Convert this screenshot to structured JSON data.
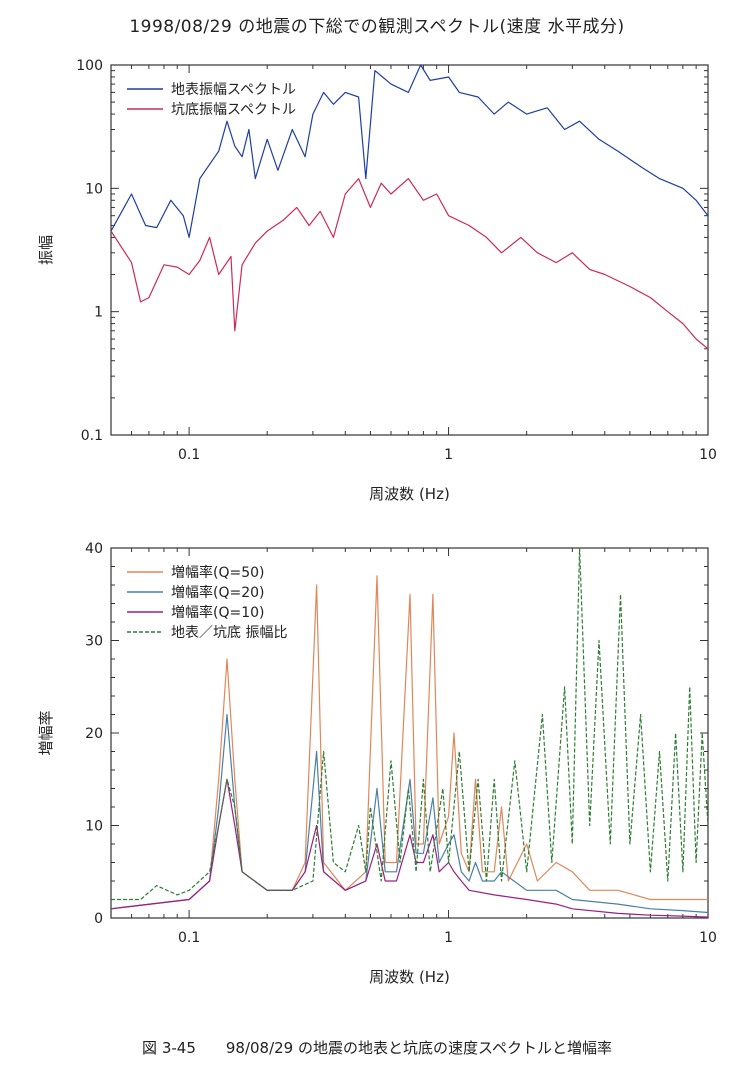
{
  "title": "1998/08/29 の地震の下総での観測スペクトル(速度 水平成分)",
  "caption": "図 3-45　　98/08/29 の地震の地表と坑底の速度スペクトルと増幅率",
  "chart_data": [
    {
      "type": "line",
      "xscale": "log",
      "yscale": "log",
      "xlim": [
        0.05,
        10
      ],
      "ylim": [
        0.1,
        100
      ],
      "xlabel": "周波数 (Hz)",
      "ylabel": "振幅",
      "xticks": [
        "0.1",
        "1",
        "10"
      ],
      "yticks": [
        "0.1",
        "1",
        "10",
        "100"
      ],
      "legend": "top-left",
      "series": [
        {
          "name": "地表振幅スペクトル",
          "color": "#1f3f9f",
          "points": [
            [
              0.05,
              4.5
            ],
            [
              0.06,
              9
            ],
            [
              0.068,
              5
            ],
            [
              0.075,
              4.8
            ],
            [
              0.085,
              8
            ],
            [
              0.095,
              6
            ],
            [
              0.1,
              4
            ],
            [
              0.11,
              12
            ],
            [
              0.13,
              20
            ],
            [
              0.14,
              35
            ],
            [
              0.15,
              22
            ],
            [
              0.16,
              18
            ],
            [
              0.17,
              30
            ],
            [
              0.18,
              12
            ],
            [
              0.2,
              25
            ],
            [
              0.22,
              14
            ],
            [
              0.25,
              30
            ],
            [
              0.28,
              18
            ],
            [
              0.3,
              40
            ],
            [
              0.33,
              60
            ],
            [
              0.36,
              48
            ],
            [
              0.4,
              60
            ],
            [
              0.45,
              55
            ],
            [
              0.48,
              12
            ],
            [
              0.52,
              90
            ],
            [
              0.6,
              70
            ],
            [
              0.7,
              60
            ],
            [
              0.78,
              100
            ],
            [
              0.85,
              75
            ],
            [
              1.0,
              80
            ],
            [
              1.1,
              60
            ],
            [
              1.3,
              55
            ],
            [
              1.5,
              40
            ],
            [
              1.7,
              50
            ],
            [
              2.0,
              40
            ],
            [
              2.4,
              45
            ],
            [
              2.8,
              30
            ],
            [
              3.2,
              35
            ],
            [
              3.8,
              25
            ],
            [
              4.5,
              20
            ],
            [
              5.5,
              15
            ],
            [
              6.5,
              12
            ],
            [
              8,
              10
            ],
            [
              9,
              8
            ],
            [
              10,
              6
            ]
          ]
        },
        {
          "name": "坑底振幅スペクトル",
          "color": "#cc2a55",
          "points": [
            [
              0.05,
              4.5
            ],
            [
              0.06,
              2.5
            ],
            [
              0.065,
              1.2
            ],
            [
              0.07,
              1.3
            ],
            [
              0.08,
              2.4
            ],
            [
              0.09,
              2.3
            ],
            [
              0.1,
              2
            ],
            [
              0.11,
              2.6
            ],
            [
              0.12,
              4
            ],
            [
              0.13,
              2
            ],
            [
              0.145,
              2.8
            ],
            [
              0.15,
              0.7
            ],
            [
              0.16,
              2.4
            ],
            [
              0.18,
              3.6
            ],
            [
              0.2,
              4.5
            ],
            [
              0.23,
              5.5
            ],
            [
              0.26,
              7
            ],
            [
              0.29,
              5
            ],
            [
              0.32,
              6.5
            ],
            [
              0.36,
              4
            ],
            [
              0.4,
              9
            ],
            [
              0.45,
              12
            ],
            [
              0.5,
              7
            ],
            [
              0.55,
              11
            ],
            [
              0.6,
              9
            ],
            [
              0.7,
              12
            ],
            [
              0.8,
              8
            ],
            [
              0.9,
              9
            ],
            [
              1.0,
              6
            ],
            [
              1.2,
              5
            ],
            [
              1.4,
              4
            ],
            [
              1.6,
              3
            ],
            [
              1.9,
              4
            ],
            [
              2.2,
              3
            ],
            [
              2.6,
              2.5
            ],
            [
              3,
              3
            ],
            [
              3.5,
              2.2
            ],
            [
              4,
              2
            ],
            [
              5,
              1.6
            ],
            [
              6,
              1.3
            ],
            [
              7,
              1
            ],
            [
              8,
              0.8
            ],
            [
              9,
              0.6
            ],
            [
              10,
              0.5
            ]
          ]
        }
      ]
    },
    {
      "type": "line",
      "xscale": "log",
      "yscale": "linear",
      "xlim": [
        0.05,
        10
      ],
      "ylim": [
        0,
        40
      ],
      "xlabel": "周波数 (Hz)",
      "ylabel": "増幅率",
      "xticks": [
        "0.1",
        "1",
        "10"
      ],
      "yticks": [
        "0",
        "10",
        "20",
        "30",
        "40"
      ],
      "legend": "top-left",
      "series": [
        {
          "name": "増幅率(Q=50)",
          "color": "#e0875a",
          "points": [
            [
              0.05,
              1
            ],
            [
              0.1,
              2
            ],
            [
              0.12,
              4
            ],
            [
              0.13,
              15
            ],
            [
              0.14,
              28
            ],
            [
              0.15,
              15
            ],
            [
              0.16,
              5
            ],
            [
              0.2,
              3
            ],
            [
              0.25,
              3
            ],
            [
              0.28,
              6
            ],
            [
              0.31,
              36
            ],
            [
              0.33,
              6
            ],
            [
              0.4,
              3
            ],
            [
              0.48,
              5
            ],
            [
              0.53,
              37
            ],
            [
              0.57,
              6
            ],
            [
              0.63,
              6
            ],
            [
              0.71,
              35
            ],
            [
              0.75,
              8
            ],
            [
              0.8,
              8
            ],
            [
              0.87,
              35
            ],
            [
              0.92,
              8
            ],
            [
              1.0,
              11
            ],
            [
              1.05,
              20
            ],
            [
              1.12,
              7
            ],
            [
              1.2,
              5
            ],
            [
              1.27,
              15
            ],
            [
              1.35,
              5
            ],
            [
              1.5,
              5
            ],
            [
              1.6,
              12
            ],
            [
              1.7,
              4
            ],
            [
              2.0,
              8
            ],
            [
              2.2,
              4
            ],
            [
              2.6,
              6
            ],
            [
              3.0,
              5
            ],
            [
              3.5,
              3
            ],
            [
              4.5,
              3
            ],
            [
              6,
              2
            ],
            [
              8,
              2
            ],
            [
              10,
              2
            ]
          ]
        },
        {
          "name": "増幅率(Q=20)",
          "color": "#4a7fa6",
          "points": [
            [
              0.05,
              1
            ],
            [
              0.1,
              2
            ],
            [
              0.12,
              4
            ],
            [
              0.13,
              12
            ],
            [
              0.14,
              22
            ],
            [
              0.15,
              12
            ],
            [
              0.16,
              5
            ],
            [
              0.2,
              3
            ],
            [
              0.25,
              3
            ],
            [
              0.28,
              5
            ],
            [
              0.31,
              18
            ],
            [
              0.33,
              5
            ],
            [
              0.4,
              3
            ],
            [
              0.48,
              4
            ],
            [
              0.53,
              14
            ],
            [
              0.57,
              5
            ],
            [
              0.63,
              5
            ],
            [
              0.71,
              15
            ],
            [
              0.75,
              7
            ],
            [
              0.8,
              7
            ],
            [
              0.87,
              13
            ],
            [
              0.92,
              6
            ],
            [
              1.0,
              8
            ],
            [
              1.05,
              9
            ],
            [
              1.12,
              5
            ],
            [
              1.2,
              4
            ],
            [
              1.27,
              6
            ],
            [
              1.35,
              4
            ],
            [
              1.5,
              4
            ],
            [
              1.6,
              5
            ],
            [
              2.0,
              3
            ],
            [
              2.6,
              3
            ],
            [
              3.0,
              2
            ],
            [
              4.5,
              1.5
            ],
            [
              6,
              1
            ],
            [
              8,
              0.8
            ],
            [
              10,
              0.6
            ]
          ]
        },
        {
          "name": "増幅率(Q=10)",
          "color": "#9b1f82",
          "points": [
            [
              0.05,
              1
            ],
            [
              0.1,
              2
            ],
            [
              0.12,
              4
            ],
            [
              0.13,
              10
            ],
            [
              0.14,
              15
            ],
            [
              0.15,
              10
            ],
            [
              0.16,
              5
            ],
            [
              0.2,
              3
            ],
            [
              0.25,
              3
            ],
            [
              0.28,
              5
            ],
            [
              0.31,
              10
            ],
            [
              0.33,
              5
            ],
            [
              0.4,
              3
            ],
            [
              0.48,
              4
            ],
            [
              0.53,
              8
            ],
            [
              0.57,
              4
            ],
            [
              0.63,
              4
            ],
            [
              0.71,
              9
            ],
            [
              0.75,
              6
            ],
            [
              0.8,
              6
            ],
            [
              0.87,
              9
            ],
            [
              0.92,
              5
            ],
            [
              1.0,
              6
            ],
            [
              1.05,
              5
            ],
            [
              1.12,
              4
            ],
            [
              1.2,
              3
            ],
            [
              1.5,
              2.5
            ],
            [
              2.0,
              2
            ],
            [
              2.6,
              1.5
            ],
            [
              3.0,
              1
            ],
            [
              4.5,
              0.5
            ],
            [
              6,
              0.3
            ],
            [
              8,
              0.2
            ],
            [
              10,
              0.1
            ]
          ]
        },
        {
          "name": "地表／坑底 振幅比",
          "color": "#2e7d32",
          "dashed": true,
          "points": [
            [
              0.05,
              2
            ],
            [
              0.065,
              2
            ],
            [
              0.075,
              3.5
            ],
            [
              0.09,
              2.5
            ],
            [
              0.1,
              3
            ],
            [
              0.12,
              5
            ],
            [
              0.13,
              10
            ],
            [
              0.14,
              15
            ],
            [
              0.15,
              12
            ],
            [
              0.16,
              5
            ],
            [
              0.2,
              3
            ],
            [
              0.25,
              3
            ],
            [
              0.3,
              4
            ],
            [
              0.33,
              18
            ],
            [
              0.36,
              6
            ],
            [
              0.4,
              5
            ],
            [
              0.45,
              10
            ],
            [
              0.48,
              5
            ],
            [
              0.5,
              12
            ],
            [
              0.55,
              4
            ],
            [
              0.6,
              17
            ],
            [
              0.65,
              6
            ],
            [
              0.7,
              14
            ],
            [
              0.75,
              5
            ],
            [
              0.8,
              15
            ],
            [
              0.85,
              5
            ],
            [
              0.95,
              14
            ],
            [
              1.0,
              6
            ],
            [
              1.1,
              18
            ],
            [
              1.2,
              5
            ],
            [
              1.3,
              15
            ],
            [
              1.4,
              4
            ],
            [
              1.5,
              15
            ],
            [
              1.6,
              4
            ],
            [
              1.8,
              17
            ],
            [
              2.0,
              5
            ],
            [
              2.3,
              22
            ],
            [
              2.5,
              6
            ],
            [
              2.8,
              25
            ],
            [
              3.0,
              8
            ],
            [
              3.2,
              40
            ],
            [
              3.5,
              10
            ],
            [
              3.8,
              30
            ],
            [
              4.2,
              8
            ],
            [
              4.6,
              35
            ],
            [
              5,
              8
            ],
            [
              5.5,
              22
            ],
            [
              6,
              5
            ],
            [
              6.5,
              18
            ],
            [
              7,
              4
            ],
            [
              7.5,
              20
            ],
            [
              8,
              5
            ],
            [
              8.5,
              25
            ],
            [
              9,
              6
            ],
            [
              9.5,
              20
            ],
            [
              10,
              10
            ]
          ]
        }
      ]
    }
  ]
}
